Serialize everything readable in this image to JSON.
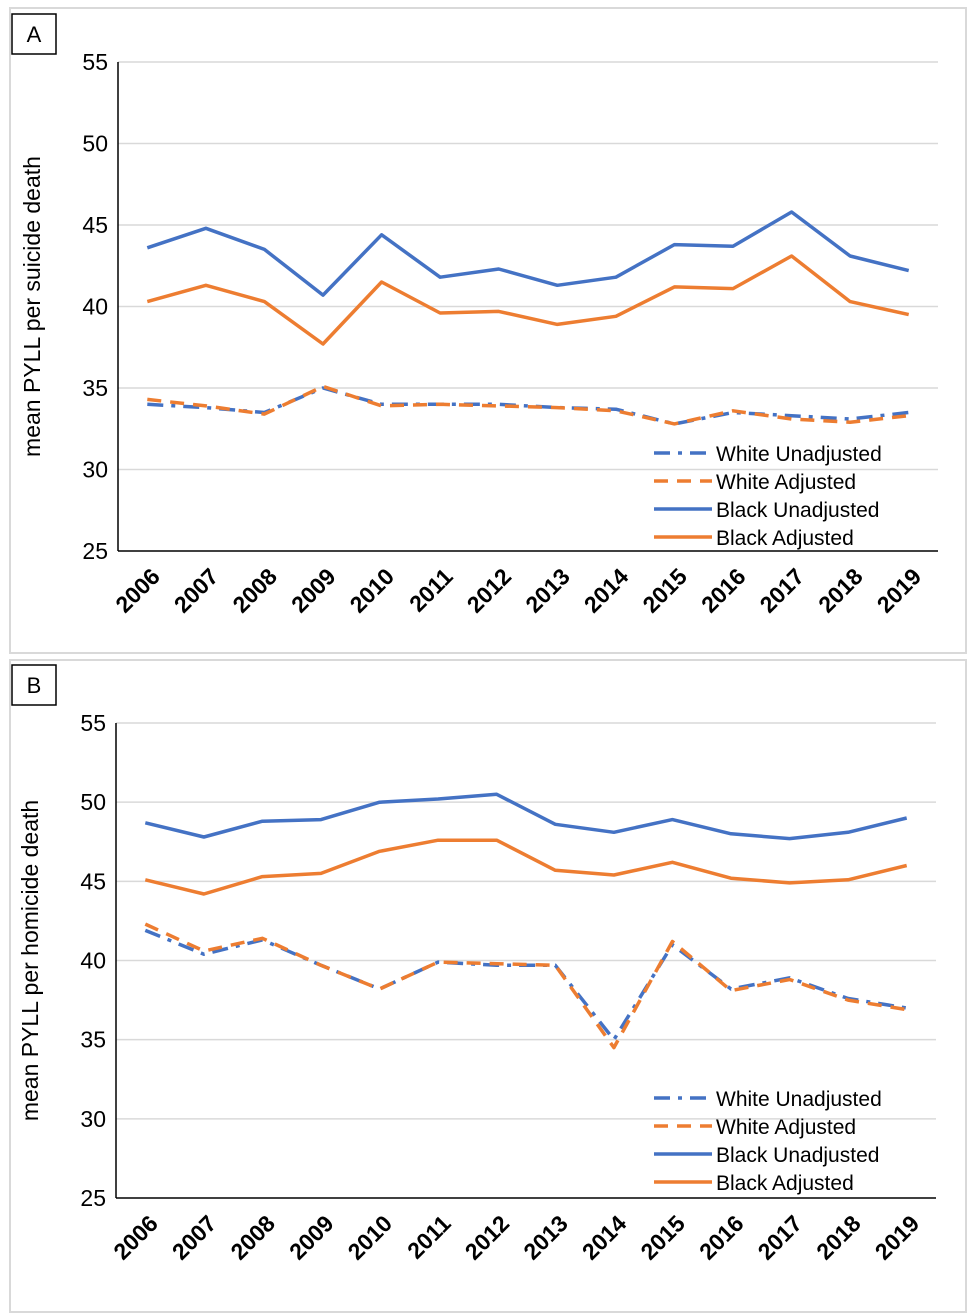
{
  "colors": {
    "blue": "#4472c4",
    "orange": "#ed7d31"
  },
  "chart_data": [
    {
      "type": "line",
      "panel_label": "A",
      "ylabel": "mean PYLL per suicide death",
      "xlabel": "",
      "ylim": [
        25,
        55
      ],
      "yticks": [
        25,
        30,
        35,
        40,
        45,
        50,
        55
      ],
      "grid": true,
      "legend": "bottom-right",
      "x": [
        "2006",
        "2007",
        "2008",
        "2009",
        "2010",
        "2011",
        "2012",
        "2013",
        "2014",
        "2015",
        "2016",
        "2017",
        "2018",
        "2019"
      ],
      "series": [
        {
          "name": "White Unadjusted",
          "color": "#4472c4",
          "style": "dashdot",
          "values": [
            34.0,
            33.8,
            33.5,
            35.0,
            34.0,
            34.0,
            34.0,
            33.8,
            33.7,
            32.8,
            33.5,
            33.3,
            33.1,
            33.5
          ]
        },
        {
          "name": "White Adjusted",
          "color": "#ed7d31",
          "style": "dash",
          "values": [
            34.3,
            33.9,
            33.4,
            35.1,
            33.9,
            34.0,
            33.9,
            33.8,
            33.6,
            32.8,
            33.6,
            33.1,
            32.9,
            33.3
          ]
        },
        {
          "name": "Black Unadjusted",
          "color": "#4472c4",
          "style": "solid",
          "values": [
            43.6,
            44.8,
            43.5,
            40.7,
            44.4,
            41.8,
            42.3,
            41.3,
            41.8,
            43.8,
            43.7,
            45.8,
            43.1,
            42.2
          ]
        },
        {
          "name": "Black Adjusted",
          "color": "#ed7d31",
          "style": "solid",
          "values": [
            40.3,
            41.3,
            40.3,
            37.7,
            41.5,
            39.6,
            39.7,
            38.9,
            39.4,
            41.2,
            41.1,
            43.1,
            40.3,
            39.5
          ]
        }
      ]
    },
    {
      "type": "line",
      "panel_label": "B",
      "ylabel": "mean PYLL per homicide death",
      "xlabel": "",
      "ylim": [
        25,
        55
      ],
      "yticks": [
        25,
        30,
        35,
        40,
        45,
        50,
        55
      ],
      "grid": true,
      "legend": "bottom-right",
      "x": [
        "2006",
        "2007",
        "2008",
        "2009",
        "2010",
        "2011",
        "2012",
        "2013",
        "2014",
        "2015",
        "2016",
        "2017",
        "2018",
        "2019"
      ],
      "series": [
        {
          "name": "White Unadjusted",
          "color": "#4472c4",
          "style": "dashdot",
          "values": [
            41.9,
            40.4,
            41.3,
            39.7,
            38.2,
            39.9,
            39.7,
            39.7,
            35.0,
            41.0,
            38.2,
            38.9,
            37.6,
            37.0
          ]
        },
        {
          "name": "White Adjusted",
          "color": "#ed7d31",
          "style": "dash",
          "values": [
            42.3,
            40.6,
            41.4,
            39.7,
            38.2,
            39.9,
            39.8,
            39.7,
            34.5,
            41.2,
            38.1,
            38.8,
            37.5,
            36.9
          ]
        },
        {
          "name": "Black Unadjusted",
          "color": "#4472c4",
          "style": "solid",
          "values": [
            48.7,
            47.8,
            48.8,
            48.9,
            50.0,
            50.2,
            50.5,
            48.6,
            48.1,
            48.9,
            48.0,
            47.7,
            48.1,
            49.0
          ]
        },
        {
          "name": "Black Adjusted",
          "color": "#ed7d31",
          "style": "solid",
          "values": [
            45.1,
            44.2,
            45.3,
            45.5,
            46.9,
            47.6,
            47.6,
            45.7,
            45.4,
            46.2,
            45.2,
            44.9,
            45.1,
            46.0
          ]
        }
      ]
    }
  ]
}
